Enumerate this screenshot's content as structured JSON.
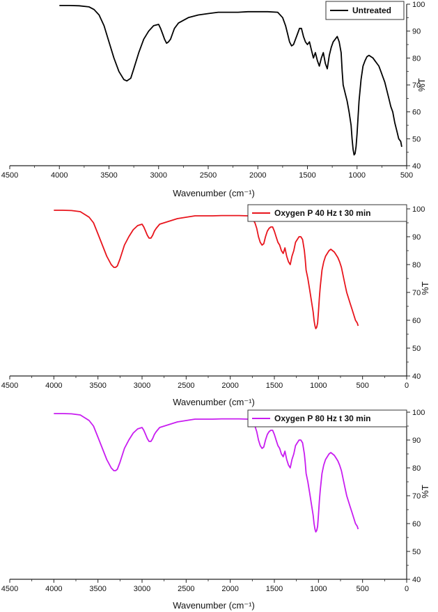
{
  "chart_data": [
    {
      "type": "line",
      "xlabel": "Wavenumber (cm⁻¹)",
      "ylabel": "%T",
      "xlim": [
        4500,
        500
      ],
      "ylim": [
        40,
        100
      ],
      "xticks": [
        "4500",
        "4000",
        "3500",
        "3000",
        "2500",
        "2000",
        "1500",
        "1000",
        "500"
      ],
      "yticks": [
        "40",
        "50",
        "60",
        "70",
        "80",
        "90",
        "100"
      ],
      "legend_position": "top-right",
      "series": [
        {
          "name": "Untreated",
          "color": "#000000",
          "x": [
            4000,
            3900,
            3800,
            3700,
            3650,
            3600,
            3550,
            3500,
            3450,
            3400,
            3350,
            3320,
            3300,
            3280,
            3250,
            3200,
            3150,
            3100,
            3050,
            3000,
            2980,
            2960,
            2940,
            2920,
            2900,
            2880,
            2860,
            2840,
            2800,
            2700,
            2600,
            2500,
            2400,
            2300,
            2200,
            2100,
            2000,
            1900,
            1800,
            1750,
            1720,
            1700,
            1680,
            1660,
            1640,
            1620,
            1600,
            1580,
            1560,
            1540,
            1520,
            1500,
            1480,
            1460,
            1440,
            1420,
            1400,
            1380,
            1360,
            1340,
            1320,
            1300,
            1280,
            1260,
            1240,
            1220,
            1200,
            1180,
            1160,
            1150,
            1140,
            1120,
            1100,
            1080,
            1060,
            1050,
            1040,
            1030,
            1020,
            1010,
            1000,
            990,
            980,
            960,
            940,
            920,
            900,
            880,
            860,
            840,
            820,
            800,
            780,
            760,
            740,
            720,
            700,
            680,
            660,
            640,
            620,
            600,
            580,
            560,
            550
          ],
          "y": [
            99.5,
            99.5,
            99.4,
            99,
            98,
            96,
            92,
            86,
            80,
            75,
            72,
            71.5,
            72,
            72.5,
            76,
            82,
            87,
            90,
            92,
            92.5,
            91,
            89,
            87,
            85.5,
            86,
            87,
            89,
            91,
            93,
            95,
            96,
            96.5,
            97,
            97,
            97,
            97.2,
            97.2,
            97.2,
            97,
            95,
            92,
            89,
            86,
            84.5,
            85,
            87,
            89,
            91,
            91,
            88,
            86,
            85,
            86,
            83,
            80,
            82,
            79,
            77,
            80,
            82,
            78,
            76,
            81,
            84,
            86,
            87,
            88,
            86,
            82,
            75,
            70,
            67,
            64,
            60,
            55,
            50,
            46,
            44,
            44.5,
            47,
            52,
            58,
            64,
            72,
            77,
            79,
            80.5,
            81,
            80.5,
            80,
            79,
            78,
            77,
            75,
            73,
            71,
            68,
            65,
            62,
            60,
            56,
            53,
            50,
            49,
            47
          ],
          "minx": 550,
          "maxx": 4000
        },
        {
          "name": "Oxygen P 40 Hz t 30 min",
          "color": "#e8141c",
          "x": [
            4000,
            3900,
            3800,
            3700,
            3650,
            3600,
            3550,
            3500,
            3450,
            3400,
            3350,
            3320,
            3300,
            3280,
            3250,
            3200,
            3150,
            3100,
            3050,
            3000,
            2980,
            2960,
            2940,
            2920,
            2900,
            2880,
            2860,
            2840,
            2800,
            2700,
            2600,
            2500,
            2400,
            2300,
            2200,
            2100,
            2000,
            1900,
            1800,
            1750,
            1720,
            1700,
            1680,
            1660,
            1640,
            1620,
            1600,
            1580,
            1560,
            1540,
            1520,
            1500,
            1480,
            1460,
            1440,
            1420,
            1400,
            1380,
            1360,
            1340,
            1320,
            1300,
            1280,
            1260,
            1240,
            1220,
            1200,
            1180,
            1160,
            1150,
            1140,
            1120,
            1100,
            1080,
            1060,
            1050,
            1040,
            1030,
            1020,
            1010,
            1000,
            990,
            980,
            960,
            940,
            920,
            900,
            880,
            860,
            840,
            820,
            800,
            780,
            760,
            740,
            720,
            700,
            680,
            660,
            640,
            620,
            600,
            580,
            560,
            550
          ],
          "y": [
            99.5,
            99.5,
            99.4,
            99,
            98,
            97,
            95,
            91,
            87,
            83,
            80,
            79,
            79,
            79.5,
            82,
            87,
            90,
            92.5,
            94,
            94.5,
            93.5,
            92,
            90.5,
            89.5,
            89.5,
            90.5,
            92,
            93,
            94.5,
            95.5,
            96.5,
            97,
            97.5,
            97.5,
            97.5,
            97.6,
            97.6,
            97.6,
            97.5,
            96.5,
            95,
            93,
            90,
            88,
            87,
            87.5,
            90,
            92,
            93,
            93.5,
            93.5,
            92,
            90,
            88,
            87,
            85,
            84,
            86,
            83,
            81,
            80,
            83,
            85,
            88,
            89,
            90,
            90,
            89,
            85,
            82,
            78,
            75,
            71,
            67,
            63,
            60,
            58,
            57,
            57.5,
            59,
            63,
            68,
            72,
            78,
            81,
            83,
            84,
            85,
            85.5,
            85,
            84.5,
            83.5,
            82.5,
            81,
            79,
            76,
            73,
            70,
            68,
            66,
            64,
            62,
            60,
            59,
            58
          ]
        },
        {
          "name": "Oxygen P 80 Hz t 30 min",
          "color": "#c81cf0",
          "x": [
            4000,
            3900,
            3800,
            3700,
            3650,
            3600,
            3550,
            3500,
            3450,
            3400,
            3350,
            3320,
            3300,
            3280,
            3250,
            3200,
            3150,
            3100,
            3050,
            3000,
            2980,
            2960,
            2940,
            2920,
            2900,
            2880,
            2860,
            2840,
            2800,
            2700,
            2600,
            2500,
            2400,
            2300,
            2200,
            2100,
            2000,
            1900,
            1800,
            1750,
            1720,
            1700,
            1680,
            1660,
            1640,
            1620,
            1600,
            1580,
            1560,
            1540,
            1520,
            1500,
            1480,
            1460,
            1440,
            1420,
            1400,
            1380,
            1360,
            1340,
            1320,
            1300,
            1280,
            1260,
            1240,
            1220,
            1200,
            1180,
            1160,
            1150,
            1140,
            1120,
            1100,
            1080,
            1060,
            1050,
            1040,
            1030,
            1020,
            1010,
            1000,
            990,
            980,
            960,
            940,
            920,
            900,
            880,
            860,
            840,
            820,
            800,
            780,
            760,
            740,
            720,
            700,
            680,
            660,
            640,
            620,
            600,
            580,
            560,
            550
          ],
          "y": [
            99.5,
            99.5,
            99.4,
            99,
            98,
            97,
            95,
            91,
            87,
            83,
            80,
            79,
            79,
            79.5,
            82,
            87,
            90,
            92.5,
            94,
            94.5,
            93.5,
            92,
            90.5,
            89.5,
            89.5,
            90.5,
            92,
            93,
            94.5,
            95.5,
            96.5,
            97,
            97.5,
            97.5,
            97.5,
            97.6,
            97.6,
            97.6,
            97.5,
            96.5,
            95,
            93,
            90,
            88,
            87,
            87.5,
            90,
            92,
            93,
            93.5,
            93.5,
            92,
            90,
            88,
            87,
            85,
            84,
            86,
            83,
            81,
            80,
            83,
            85,
            88,
            89,
            90,
            90,
            89,
            85,
            82,
            78,
            75,
            71,
            67,
            63,
            60,
            58,
            57,
            57.5,
            59,
            63,
            68,
            72,
            78,
            81,
            83,
            84,
            85,
            85.5,
            85,
            84.5,
            83.5,
            82.5,
            81,
            79,
            76,
            73,
            70,
            68,
            66,
            64,
            62,
            60,
            59,
            58
          ]
        }
      ]
    }
  ],
  "panels": [
    {
      "xlabel": "Wavenumber (cm⁻¹)",
      "ylabel": "",
      "xticks": [
        "4500",
        "4000",
        "3500",
        "3000",
        "2500",
        "2000",
        "1500",
        "1000",
        "500"
      ],
      "xlim": [
        4500,
        500
      ],
      "legend": "Untreated",
      "color": "#000000"
    },
    {
      "xlabel": "Wavenumber (cm⁻¹)",
      "ylabel": "%T",
      "xticks": [
        "4500",
        "4000",
        "3500",
        "3000",
        "2500",
        "2000",
        "1500",
        "1000",
        "500",
        "0"
      ],
      "xlim": [
        4500,
        0
      ],
      "legend": "Oxygen P 40 Hz t 30 min",
      "color": "#e8141c"
    },
    {
      "xlabel": "Wavenumber (cm⁻¹)",
      "ylabel": "%T",
      "xticks": [
        "4500",
        "4000",
        "3500",
        "3000",
        "2500",
        "2000",
        "1500",
        "1000",
        "500",
        "0"
      ],
      "xlim": [
        4500,
        0
      ],
      "legend": "Oxygen P 80 Hz t 30 min",
      "color": "#c81cf0"
    }
  ],
  "panel_top_ylabel": "%T",
  "yticks": [
    "40",
    "50",
    "60",
    "70",
    "80",
    "90",
    "100"
  ]
}
